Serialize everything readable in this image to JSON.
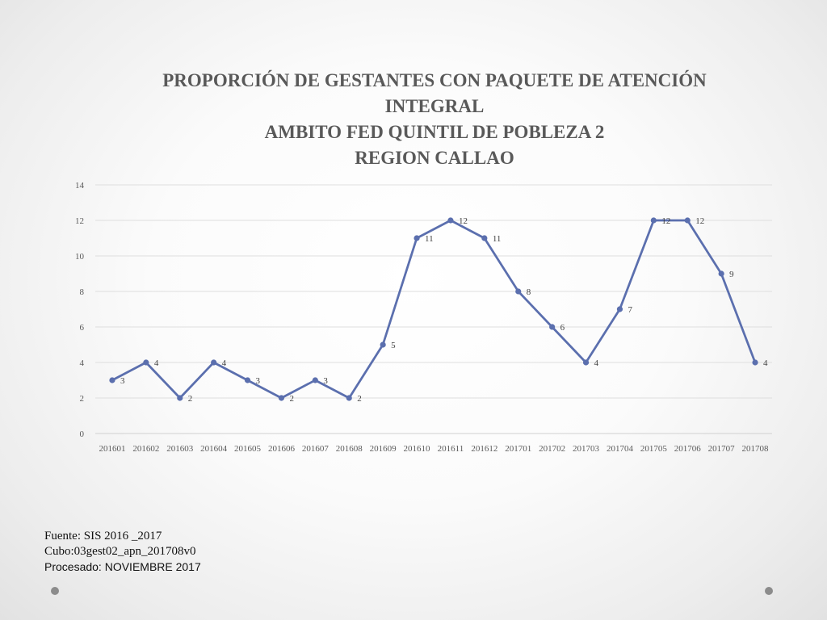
{
  "chart_data": {
    "type": "line",
    "title_lines": [
      "PROPORCIÓN DE GESTANTES CON PAQUETE DE ATENCIÓN",
      "INTEGRAL",
      "AMBITO FED QUINTIL DE POBLEZA 2",
      "REGION CALLAO"
    ],
    "categories": [
      "201601",
      "201602",
      "201603",
      "201604",
      "201605",
      "201606",
      "201607",
      "201608",
      "201609",
      "201610",
      "201611",
      "201612",
      "201701",
      "201702",
      "201703",
      "201704",
      "201705",
      "201706",
      "201707",
      "201708"
    ],
    "series": [
      {
        "values": [
          3,
          4,
          2,
          4,
          3,
          2,
          3,
          2,
          5,
          11,
          12,
          11,
          8,
          6,
          4,
          7,
          12,
          12,
          9,
          4
        ],
        "color": "#5b6fae"
      }
    ],
    "ylim": [
      0,
      14
    ],
    "y_ticks": [
      0,
      2,
      4,
      6,
      8,
      10,
      12,
      14
    ],
    "grid": true,
    "legend": "none",
    "data_labels": true
  },
  "footer": {
    "line1": "Fuente: SIS 2016 _2017",
    "line2": "Cubo:03gest02_apn_201708v0",
    "line3": "Procesado: NOVIEMBRE 2017"
  },
  "decorations": {
    "corner_dots": "gray-dot"
  }
}
